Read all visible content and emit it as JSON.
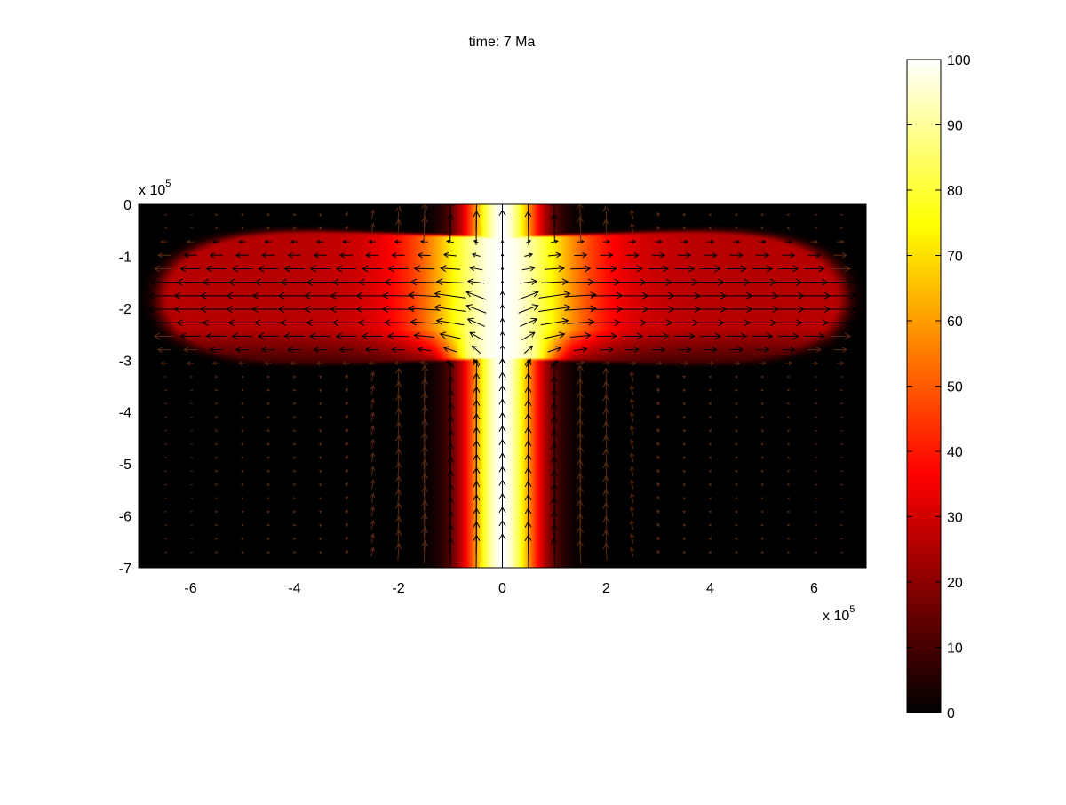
{
  "chart_data": {
    "type": "heatmap",
    "title": "time: 7 Ma",
    "x_tick_labels": [
      "-6",
      "-4",
      "-2",
      "0",
      "2",
      "4",
      "6"
    ],
    "x_tick_values": [
      -600000,
      -400000,
      -200000,
      0,
      200000,
      400000,
      600000
    ],
    "y_tick_labels": [
      "0",
      "-1",
      "-2",
      "-3",
      "-4",
      "-5",
      "-6",
      "-7"
    ],
    "y_tick_values": [
      0,
      -100000,
      -200000,
      -300000,
      -400000,
      -500000,
      -600000,
      -700000
    ],
    "x_multiplier": {
      "base": "x 10",
      "exp": "5"
    },
    "y_multiplier": {
      "base": "x 10",
      "exp": "5"
    },
    "xlim": [
      -700000,
      700000
    ],
    "ylim": [
      -700000,
      0
    ],
    "colorbar": {
      "colormap": "hot",
      "range": [
        0,
        100
      ],
      "tick_labels": [
        "0",
        "10",
        "20",
        "30",
        "40",
        "50",
        "60",
        "70",
        "80",
        "90",
        "100"
      ],
      "tick_values": [
        0,
        10,
        20,
        30,
        40,
        50,
        60,
        70,
        80,
        90,
        100
      ],
      "location": "right"
    },
    "field": {
      "description": "axisymmetric mushroom-shaped plume",
      "stem_half_width": 70000,
      "head_center_depth": -180000,
      "head_half_width": 640000,
      "head_top_depth": -65000,
      "peak_value": 100
    },
    "overlay": {
      "type": "quiver",
      "grid_x_spacing": 50000,
      "grid_y_spacing": 26000,
      "strong_arrow_color": "#000000",
      "weak_arrow_color": "#5a2a10"
    }
  }
}
